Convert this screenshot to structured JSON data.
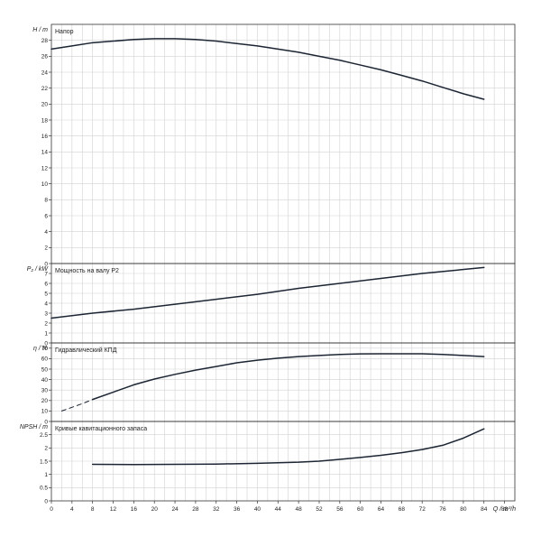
{
  "chart_data": [
    {
      "type": "line",
      "panel_title": "Напор",
      "ylabel": "H / m",
      "ylim": [
        0,
        30
      ],
      "yticks": [
        0,
        2,
        4,
        6,
        8,
        10,
        12,
        14,
        16,
        18,
        20,
        22,
        24,
        26,
        28
      ],
      "series": [
        {
          "style": "solid",
          "points": [
            [
              0,
              26.9
            ],
            [
              4,
              27.3
            ],
            [
              8,
              27.7
            ],
            [
              12,
              27.9
            ],
            [
              16,
              28.1
            ],
            [
              20,
              28.2
            ],
            [
              24,
              28.2
            ],
            [
              28,
              28.1
            ],
            [
              32,
              27.9
            ],
            [
              36,
              27.6
            ],
            [
              40,
              27.3
            ],
            [
              44,
              26.9
            ],
            [
              48,
              26.5
            ],
            [
              52,
              26.0
            ],
            [
              56,
              25.5
            ],
            [
              60,
              24.9
            ],
            [
              64,
              24.3
            ],
            [
              68,
              23.6
            ],
            [
              72,
              22.9
            ],
            [
              76,
              22.1
            ],
            [
              80,
              21.3
            ],
            [
              84,
              20.6
            ]
          ]
        }
      ]
    },
    {
      "type": "line",
      "panel_title": "Мощность на валу P2",
      "ylabel": "P₂ / kW",
      "ylim": [
        0,
        8
      ],
      "yticks": [
        0,
        1,
        2,
        3,
        4,
        5,
        6,
        7
      ],
      "series": [
        {
          "style": "solid",
          "points": [
            [
              0,
              2.5
            ],
            [
              8,
              3.0
            ],
            [
              16,
              3.4
            ],
            [
              24,
              3.9
            ],
            [
              32,
              4.4
            ],
            [
              40,
              4.9
            ],
            [
              48,
              5.5
            ],
            [
              56,
              6.0
            ],
            [
              64,
              6.5
            ],
            [
              72,
              7.0
            ],
            [
              78,
              7.3
            ],
            [
              84,
              7.6
            ]
          ]
        }
      ]
    },
    {
      "type": "line",
      "panel_title": "Гидравлический КПД",
      "ylabel": "η / %",
      "ylim": [
        0,
        75
      ],
      "yticks": [
        0,
        10,
        20,
        30,
        40,
        50,
        60,
        70
      ],
      "series": [
        {
          "style": "dashed",
          "points": [
            [
              2,
              10
            ],
            [
              4,
              13.5
            ],
            [
              6,
              17
            ],
            [
              8,
              21
            ]
          ]
        },
        {
          "style": "solid",
          "points": [
            [
              8,
              21
            ],
            [
              12,
              28
            ],
            [
              16,
              35
            ],
            [
              20,
              40.5
            ],
            [
              24,
              45
            ],
            [
              28,
              49
            ],
            [
              32,
              52.5
            ],
            [
              36,
              56
            ],
            [
              40,
              58.5
            ],
            [
              44,
              60.5
            ],
            [
              48,
              62
            ],
            [
              52,
              63
            ],
            [
              56,
              64
            ],
            [
              60,
              64.5
            ],
            [
              64,
              64.7
            ],
            [
              68,
              64.7
            ],
            [
              72,
              64.6
            ],
            [
              76,
              64
            ],
            [
              80,
              63
            ],
            [
              84,
              62
            ]
          ]
        }
      ]
    },
    {
      "type": "line",
      "panel_title": "Кривые кавитационного запаса",
      "ylabel": "NPSH / m",
      "ylim": [
        0,
        3
      ],
      "yticks": [
        0,
        0.5,
        1,
        1.5,
        2,
        2.5
      ],
      "series": [
        {
          "style": "solid",
          "points": [
            [
              8,
              1.38
            ],
            [
              16,
              1.37
            ],
            [
              24,
              1.38
            ],
            [
              32,
              1.39
            ],
            [
              40,
              1.42
            ],
            [
              48,
              1.46
            ],
            [
              52,
              1.5
            ],
            [
              56,
              1.57
            ],
            [
              60,
              1.64
            ],
            [
              64,
              1.72
            ],
            [
              68,
              1.82
            ],
            [
              72,
              1.94
            ],
            [
              76,
              2.1
            ],
            [
              80,
              2.37
            ],
            [
              84,
              2.72
            ]
          ]
        }
      ]
    }
  ],
  "x_axis": {
    "label": "Q / m³/h",
    "xlim": [
      0,
      90
    ],
    "ticks": [
      0,
      4,
      8,
      12,
      16,
      20,
      24,
      28,
      32,
      36,
      40,
      44,
      48,
      52,
      56,
      60,
      64,
      68,
      72,
      76,
      80,
      84,
      88
    ]
  },
  "grid": true,
  "colors": {
    "curve": "#1c2533",
    "grid": "#d2d2d2",
    "frame": "#333333",
    "text": "#222222"
  }
}
